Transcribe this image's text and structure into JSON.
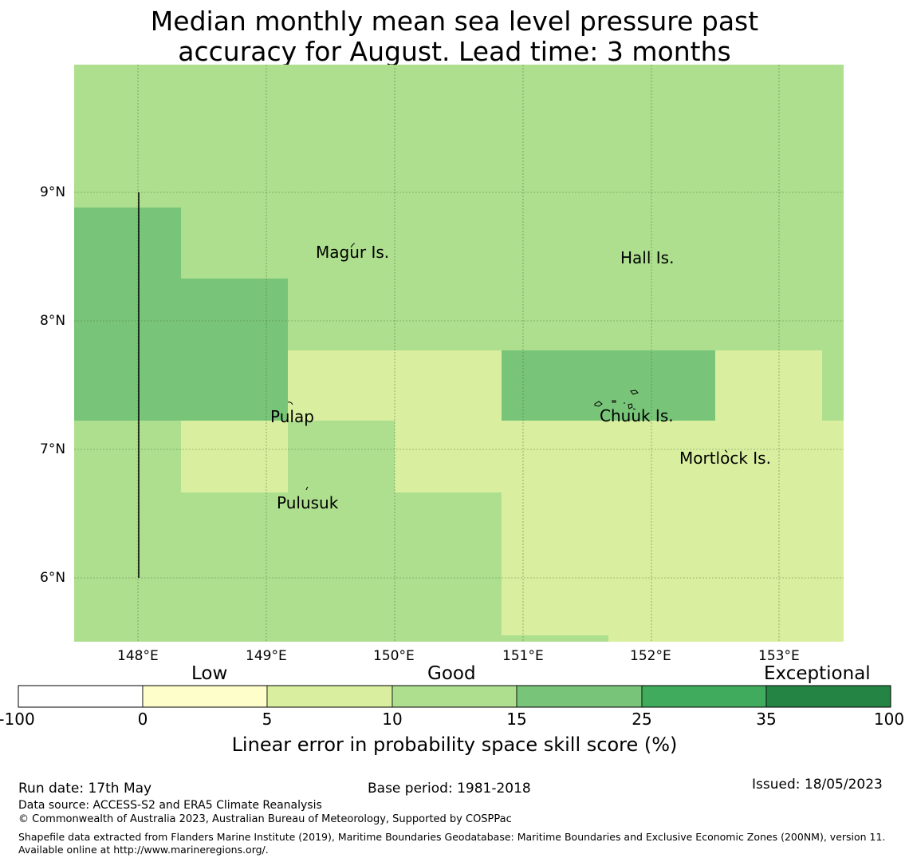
{
  "title": {
    "line1": "Median monthly mean sea level pressure past",
    "line2": "accuracy for August. Lead time: 3 months"
  },
  "map": {
    "lat_ticks": [
      "9°N",
      "8°N",
      "7°N",
      "6°N"
    ],
    "lon_ticks": [
      "148°E",
      "149°E",
      "150°E",
      "151°E",
      "152°E",
      "153°E"
    ],
    "places": [
      "Magur Is.",
      "Hall Is.",
      "Pulap",
      "Chuuk Is.",
      "Mortlock Is.",
      "Pulusuk"
    ],
    "colors": {
      "low": "#fefecb",
      "c5_10": "#d9ef9f",
      "c10_15": "#addf8e",
      "c15_25": "#78c579",
      "c25_35": "#40ab5d",
      "c35_100": "#238443"
    }
  },
  "colorbar": {
    "categories": [
      "Low",
      "Good",
      "Exceptional"
    ],
    "ticks": [
      "-100",
      "0",
      "5",
      "10",
      "15",
      "25",
      "35",
      "100"
    ],
    "colors": [
      "#ffffff",
      "#fefecb",
      "#d9ef9f",
      "#addf8e",
      "#78c579",
      "#40ab5d",
      "#238443"
    ],
    "label": "Linear error in probability space skill score (%)"
  },
  "footer": {
    "run_date": "Run date: 17th May",
    "base_period": "Base period: 1981-2018",
    "issued": "Issued: 18/05/2023",
    "data_source": "Data source: ACCESS-S2 and ERA5 Climate Reanalysis",
    "copyright": "© Commonwealth of Australia 2023, Australian Bureau of Meteorology, Supported by COSPPac",
    "shapefile": "Shapefile data extracted from Flanders Marine Institute (2019), Maritime Boundaries Geodatabase: Maritime Boundaries and Exclusive Economic Zones (200NM), version 11. Available online at http://www.marineregions.org/."
  }
}
